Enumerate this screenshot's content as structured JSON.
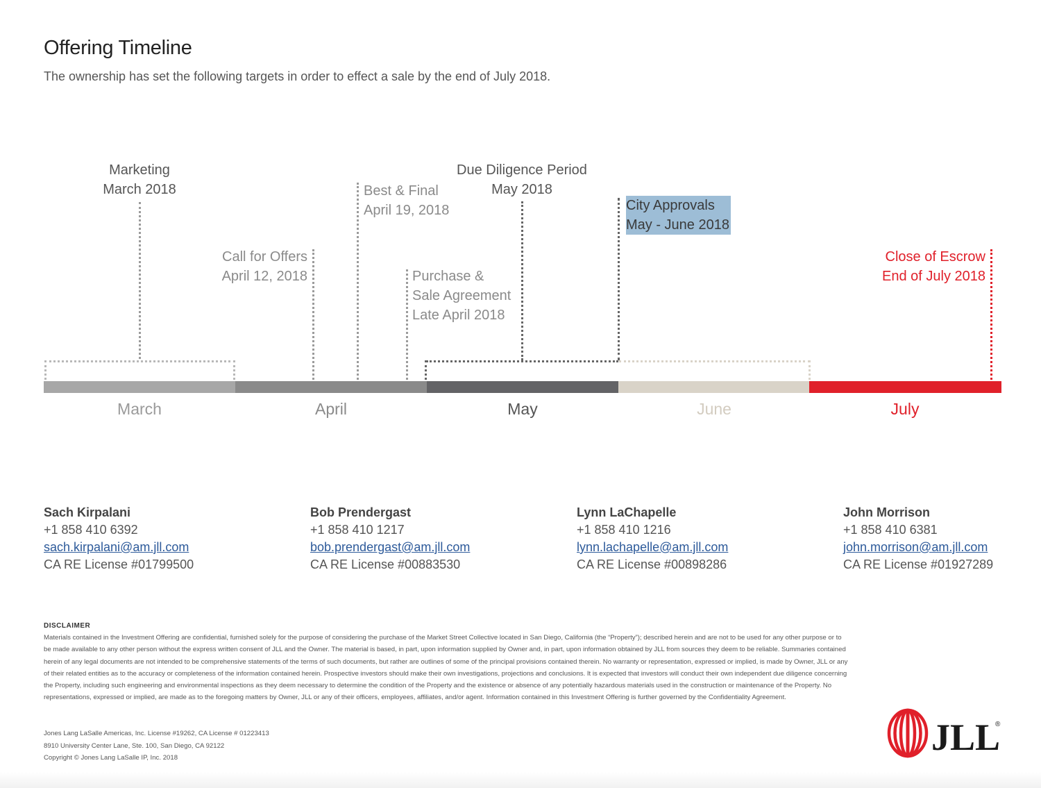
{
  "header": {
    "title": "Offering Timeline",
    "subtitle": "The ownership has set the following targets in order to effect a sale by the end of July 2018."
  },
  "timeline": {
    "months": [
      {
        "label": "March",
        "color": "#a7a7a7",
        "text_color": "#9a9a9a"
      },
      {
        "label": "April",
        "color": "#8a8a8a",
        "text_color": "#8a8a8a"
      },
      {
        "label": "May",
        "color": "#636366",
        "text_color": "#555555"
      },
      {
        "label": "June",
        "color": "#d9d3c8",
        "text_color": "#d3ccc0"
      },
      {
        "label": "July",
        "color": "#e0202a",
        "text_color": "#e0202a"
      }
    ],
    "milestones": {
      "marketing": {
        "line1": "Marketing",
        "line2": "March 2018"
      },
      "call_for_offers": {
        "line1": "Call for Offers",
        "line2": "April 12, 2018"
      },
      "best_final": {
        "line1": "Best & Final",
        "line2": "April 19, 2018"
      },
      "purchase_sale": {
        "line1": "Purchase &",
        "line2": "Sale Agreement",
        "line3": "Late April 2018"
      },
      "due_diligence": {
        "line1": "Due Diligence Period",
        "line2": "May 2018"
      },
      "city_approvals": {
        "line1": "City Approvals",
        "line2": "May - June 2018",
        "highlight": "#9dbdd6"
      },
      "close_escrow": {
        "line1": "Close of Escrow",
        "line2": "End of July 2018"
      }
    }
  },
  "contacts": [
    {
      "name": "Sach Kirpalani",
      "phone": "+1 858 410 6392",
      "email": "sach.kirpalani@am.jll.com",
      "license": "CA RE License #01799500"
    },
    {
      "name": "Bob Prendergast",
      "phone": "+1 858 410 1217",
      "email": "bob.prendergast@am.jll.com",
      "license": "CA RE License #00883530"
    },
    {
      "name": "Lynn LaChapelle",
      "phone": "+1 858 410 1216",
      "email": "lynn.lachapelle@am.jll.com",
      "license": "CA RE License #00898286"
    },
    {
      "name": "John Morrison",
      "phone": "+1 858 410 6381",
      "email": "john.morrison@am.jll.com",
      "license": "CA RE License #01927289"
    }
  ],
  "disclaimer": {
    "title": "DISCLAIMER",
    "text": "Materials contained in the Investment Offering are confidential, furnished solely for the purpose of considering the purchase of the Market Street Collective located in San Diego, California (the “Property”); described herein and are not to be used for any other purpose or to be made available to any other person without the express written consent of JLL and the Owner. The material is based, in part, upon information supplied by Owner and, in part, upon information obtained by JLL from sources they deem to be reliable. Summaries contained herein of any legal documents are not intended to be comprehensive statements of the terms of such documents, but rather are outlines of some of the principal provisions contained therein. No warranty or representation, expressed or implied, is made by Owner, JLL or any of their related entities as to the accuracy or completeness of the information contained herein. Prospective investors should make their own investigations, projections and conclusions. It is expected that investors will conduct their own independent due diligence concerning the Property, including such engineering and environmental inspections as they deem necessary to determine the condition of the Property and the existence or absence of any potentially hazardous materials used in the construction or maintenance of the Property. No representations, expressed or implied, are made as to the foregoing matters by Owner, JLL or any of their officers, employees, affiliates, and/or agent. Information contained in this Investment Offering is further governed by the Confidentiality Agreement."
  },
  "company": {
    "line1": "Jones Lang LaSalle Americas, Inc. License #19262, CA License # 01223413",
    "line2": "8910 University Center Lane, Ste. 100, San Diego, CA 92122",
    "line3": "Copyright © Jones Lang LaSalle IP, Inc. 2018"
  },
  "logo": {
    "text": "JLL",
    "mark": "®",
    "color": "#e0202a"
  }
}
